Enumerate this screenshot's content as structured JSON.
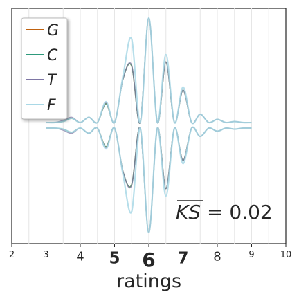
{
  "chart_data": {
    "type": "line",
    "style": "mirrored violin-like density curves",
    "xlabel": "ratings",
    "xlim": [
      2,
      10
    ],
    "xticks": [
      {
        "value": 2,
        "label": "2",
        "emphasis": "small"
      },
      {
        "value": 3,
        "label": "3",
        "emphasis": "small"
      },
      {
        "value": 4,
        "label": "4",
        "emphasis": "medium"
      },
      {
        "value": 5,
        "label": "5",
        "emphasis": "bold"
      },
      {
        "value": 6,
        "label": "6",
        "emphasis": "boldest"
      },
      {
        "value": 7,
        "label": "7",
        "emphasis": "bold"
      },
      {
        "value": 8,
        "label": "8",
        "emphasis": "medium"
      },
      {
        "value": 9,
        "label": "9",
        "emphasis": "small"
      },
      {
        "value": 10,
        "label": "10",
        "emphasis": "small"
      }
    ],
    "grid": "vertical",
    "legend": {
      "placement": "top-left"
    },
    "annotation": {
      "overline": "KS",
      "text": " = 0.02"
    },
    "x": [
      3.0,
      3.25,
      3.5,
      3.75,
      4.0,
      4.25,
      4.5,
      4.75,
      5.0,
      5.25,
      5.5,
      5.75,
      6.0,
      6.25,
      6.5,
      6.75,
      7.0,
      7.25,
      7.5,
      7.75,
      8.0,
      8.25,
      8.5,
      8.75,
      9.0
    ],
    "series": [
      {
        "name": "G",
        "color": "#c0620f",
        "values": [
          0.0,
          0.0,
          0.01,
          0.04,
          0.0,
          0.05,
          0.0,
          0.18,
          0.0,
          0.42,
          0.54,
          0.0,
          1.0,
          0.0,
          0.58,
          0.0,
          0.31,
          0.0,
          0.08,
          0.0,
          0.03,
          0.0,
          0.01,
          0.0,
          0.0
        ]
      },
      {
        "name": "C",
        "color": "#2e9a7c",
        "values": [
          0.0,
          0.0,
          0.01,
          0.04,
          0.0,
          0.05,
          0.0,
          0.18,
          0.0,
          0.42,
          0.54,
          0.0,
          1.0,
          0.0,
          0.58,
          0.0,
          0.31,
          0.0,
          0.08,
          0.0,
          0.03,
          0.0,
          0.01,
          0.0,
          0.0
        ]
      },
      {
        "name": "T",
        "color": "#7e76a4",
        "values": [
          0.0,
          0.0,
          0.02,
          0.05,
          0.0,
          0.05,
          0.0,
          0.19,
          0.0,
          0.42,
          0.55,
          0.0,
          1.0,
          0.0,
          0.58,
          0.0,
          0.31,
          0.0,
          0.08,
          0.0,
          0.03,
          0.0,
          0.01,
          0.0,
          0.0
        ]
      },
      {
        "name": "F",
        "color": "#a9d8e6",
        "values": [
          0.0,
          0.0,
          0.01,
          0.04,
          0.0,
          0.05,
          0.0,
          0.2,
          0.0,
          0.45,
          0.8,
          0.0,
          1.0,
          0.0,
          0.65,
          0.0,
          0.34,
          0.0,
          0.08,
          0.0,
          0.03,
          0.0,
          0.01,
          0.0,
          0.0
        ]
      }
    ]
  }
}
